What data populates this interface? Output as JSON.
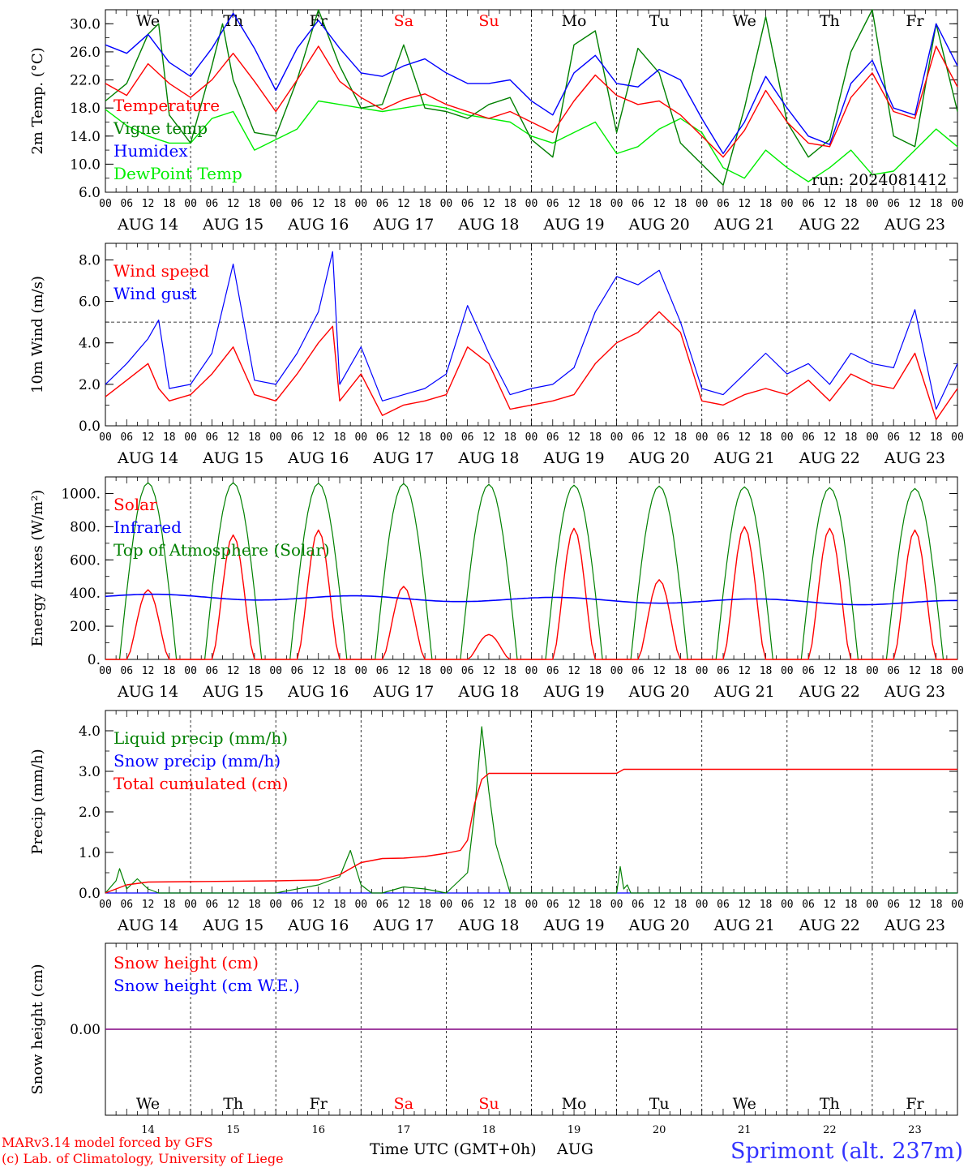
{
  "colors": {
    "red": "#ff0000",
    "green": "#008000",
    "blue": "#0000ff",
    "lightgreen": "#00ee00",
    "purple": "#800080",
    "axis": "#000000",
    "station": "#3333ff"
  },
  "chart_data": [
    {
      "type": "line",
      "ylabel": "2m Temp. (°C)",
      "ylim": [
        6.0,
        32.0
      ],
      "yticks": [
        6.0,
        10.0,
        14.0,
        18.0,
        22.0,
        26.0,
        30.0
      ],
      "ytick_labels": [
        "6.0",
        "10.0",
        "14.0",
        "18.0",
        "22.0",
        "26.0",
        "30.0"
      ],
      "annotation": "run: 2024081412",
      "show_day_names": true,
      "reference_line": null,
      "series": [
        {
          "name": "Temperature",
          "color": "red",
          "x": [
            0,
            6,
            12,
            18,
            24,
            30,
            36,
            42,
            48,
            54,
            60,
            66,
            72,
            78,
            84,
            90,
            96,
            102,
            108,
            114,
            120,
            126,
            132,
            138,
            144,
            150,
            156,
            162,
            168,
            174,
            180,
            186,
            192,
            198,
            204,
            210,
            216,
            222,
            228,
            234,
            240
          ],
          "values": [
            21.5,
            19.8,
            24.3,
            21.5,
            19.5,
            22.0,
            25.8,
            21.8,
            17.5,
            22.0,
            26.8,
            21.8,
            19.5,
            17.8,
            19.2,
            20.0,
            18.5,
            17.5,
            16.5,
            17.5,
            16.0,
            14.5,
            19.0,
            22.7,
            19.8,
            18.5,
            19.0,
            17.0,
            14.0,
            11.0,
            14.8,
            20.5,
            16.0,
            13.0,
            12.5,
            19.5,
            23.0,
            17.5,
            16.5,
            26.8,
            21.0
          ]
        },
        {
          "name": "Vigne temp",
          "color": "green",
          "x": [
            0,
            6,
            12,
            15,
            18,
            24,
            30,
            33,
            36,
            42,
            48,
            54,
            60,
            66,
            72,
            78,
            84,
            90,
            96,
            102,
            108,
            114,
            120,
            126,
            132,
            138,
            144,
            150,
            156,
            162,
            168,
            174,
            180,
            186,
            192,
            198,
            204,
            210,
            216,
            222,
            228,
            234,
            240
          ],
          "values": [
            19.0,
            21.5,
            28.5,
            30.0,
            17.0,
            13.0,
            24.0,
            30.0,
            22.0,
            14.5,
            14.0,
            22.0,
            32.0,
            24.0,
            18.0,
            18.5,
            27.0,
            18.0,
            17.5,
            16.5,
            18.5,
            19.5,
            13.5,
            11.0,
            27.0,
            29.0,
            14.5,
            26.5,
            23.0,
            13.0,
            10.0,
            7.0,
            18.0,
            31.0,
            16.0,
            11.0,
            13.5,
            26.0,
            32.0,
            14.0,
            12.5,
            30.0,
            17.5
          ]
        },
        {
          "name": "Humidex",
          "color": "blue",
          "x": [
            0,
            6,
            12,
            18,
            24,
            30,
            36,
            42,
            48,
            54,
            60,
            66,
            72,
            78,
            84,
            90,
            96,
            102,
            108,
            114,
            120,
            126,
            132,
            138,
            144,
            150,
            156,
            162,
            168,
            174,
            180,
            186,
            192,
            198,
            204,
            210,
            216,
            222,
            228,
            234,
            240
          ],
          "values": [
            27.0,
            25.8,
            28.5,
            24.5,
            22.5,
            26.5,
            31.5,
            26.5,
            20.5,
            26.5,
            30.5,
            26.5,
            23.0,
            22.5,
            24.0,
            25.0,
            23.0,
            21.5,
            21.5,
            22.0,
            19.0,
            17.0,
            23.0,
            25.5,
            21.5,
            21.0,
            23.5,
            22.0,
            16.5,
            11.5,
            16.0,
            22.5,
            18.0,
            14.0,
            12.8,
            21.5,
            24.8,
            18.0,
            17.0,
            30.0,
            24.0
          ]
        },
        {
          "name": "DewPoint Temp",
          "color": "lightgreen",
          "x": [
            0,
            6,
            12,
            18,
            24,
            30,
            36,
            42,
            48,
            54,
            60,
            66,
            72,
            78,
            84,
            90,
            96,
            102,
            108,
            114,
            120,
            126,
            132,
            138,
            144,
            150,
            156,
            162,
            168,
            174,
            180,
            186,
            192,
            198,
            204,
            210,
            216,
            222,
            228,
            234,
            240
          ],
          "values": [
            17.8,
            15.5,
            14.0,
            13.0,
            13.0,
            16.5,
            17.5,
            12.0,
            13.5,
            15.0,
            19.0,
            18.5,
            18.0,
            17.5,
            18.0,
            18.5,
            18.0,
            17.0,
            16.5,
            16.0,
            14.0,
            13.0,
            14.5,
            16.0,
            11.5,
            12.5,
            15.0,
            16.5,
            14.5,
            9.5,
            8.0,
            12.0,
            9.5,
            7.5,
            9.5,
            12.0,
            8.5,
            9.0,
            12.0,
            15.0,
            12.5
          ]
        }
      ]
    },
    {
      "type": "line",
      "ylabel": "10m Wind (m/s)",
      "ylim": [
        0.0,
        8.8
      ],
      "yticks": [
        0.0,
        2.0,
        4.0,
        6.0,
        8.0
      ],
      "ytick_labels": [
        "0.0",
        "2.0",
        "4.0",
        "6.0",
        "8.0"
      ],
      "reference_line": 5.0,
      "series": [
        {
          "name": "Wind speed",
          "color": "red",
          "x": [
            0,
            6,
            12,
            15,
            18,
            24,
            30,
            36,
            42,
            48,
            54,
            60,
            64,
            66,
            72,
            78,
            84,
            90,
            96,
            102,
            108,
            114,
            120,
            126,
            132,
            138,
            144,
            150,
            156,
            162,
            168,
            174,
            180,
            186,
            192,
            198,
            204,
            210,
            216,
            222,
            228,
            234,
            240
          ],
          "values": [
            1.4,
            2.2,
            3.0,
            1.8,
            1.2,
            1.5,
            2.5,
            3.8,
            1.5,
            1.2,
            2.5,
            4.0,
            4.8,
            1.2,
            2.5,
            0.5,
            1.0,
            1.2,
            1.5,
            3.8,
            3.0,
            0.8,
            1.0,
            1.2,
            1.5,
            3.0,
            4.0,
            4.5,
            5.5,
            4.5,
            1.2,
            1.0,
            1.5,
            1.8,
            1.5,
            2.2,
            1.2,
            2.5,
            2.0,
            1.8,
            3.5,
            0.3,
            1.8
          ]
        },
        {
          "name": "Wind gust",
          "color": "blue",
          "x": [
            0,
            6,
            12,
            15,
            18,
            24,
            30,
            36,
            42,
            48,
            54,
            60,
            64,
            66,
            72,
            78,
            84,
            90,
            96,
            102,
            108,
            114,
            120,
            126,
            132,
            138,
            144,
            150,
            156,
            162,
            168,
            174,
            180,
            186,
            192,
            198,
            204,
            210,
            216,
            222,
            228,
            234,
            240
          ],
          "values": [
            2.0,
            3.0,
            4.2,
            5.1,
            1.8,
            2.0,
            3.5,
            7.8,
            2.2,
            2.0,
            3.5,
            5.5,
            8.4,
            2.0,
            3.8,
            1.2,
            1.5,
            1.8,
            2.5,
            5.8,
            3.5,
            1.5,
            1.8,
            2.0,
            2.8,
            5.5,
            7.2,
            6.8,
            7.5,
            5.0,
            1.8,
            1.5,
            2.5,
            3.5,
            2.5,
            3.0,
            2.0,
            3.5,
            3.0,
            2.8,
            5.6,
            0.8,
            3.0
          ]
        }
      ]
    },
    {
      "type": "line",
      "ylabel": "Energy fluxes (W/m²)",
      "ylim": [
        0,
        1100
      ],
      "yticks": [
        0,
        200,
        400,
        600,
        800,
        1000
      ],
      "ytick_labels": [
        "0.",
        "200.",
        "400.",
        "600.",
        "800.",
        "1000."
      ],
      "reference_line": null,
      "toa_peaks": [
        1065,
        1065,
        1062,
        1060,
        1055,
        1050,
        1045,
        1040,
        1035,
        1030
      ],
      "solar_peaks": [
        420,
        750,
        780,
        440,
        150,
        790,
        480,
        800,
        790,
        780
      ],
      "infrared_start": 380,
      "infrared_end": 340,
      "series": [
        {
          "name": "Solar",
          "color": "red"
        },
        {
          "name": "Infrared",
          "color": "blue"
        },
        {
          "name": "Top of Atmosphere (Solar)",
          "color": "green"
        }
      ]
    },
    {
      "type": "line",
      "ylabel": "Precip (mm/h)",
      "ylim": [
        0.0,
        4.5
      ],
      "yticks": [
        0.0,
        1.0,
        2.0,
        3.0,
        4.0
      ],
      "ytick_labels": [
        "0.0",
        "1.0",
        "2.0",
        "3.0",
        "4.0"
      ],
      "reference_line": null,
      "series": [
        {
          "name": "Liquid precip (mm/h)",
          "color": "green",
          "x": [
            0,
            3,
            4,
            6,
            9,
            12,
            15,
            18,
            24,
            48,
            60,
            66,
            69,
            72,
            75,
            78,
            84,
            90,
            96,
            102,
            104,
            106,
            108,
            110,
            114,
            120,
            144,
            145,
            146,
            147,
            148,
            149,
            150,
            240
          ],
          "values": [
            0,
            0.3,
            0.6,
            0.1,
            0.35,
            0.1,
            0,
            0,
            0,
            0,
            0.2,
            0.4,
            1.05,
            0.2,
            0,
            0,
            0.15,
            0.1,
            0,
            0.5,
            2.0,
            4.1,
            2.5,
            1.2,
            0,
            0,
            0,
            0.65,
            0.1,
            0.2,
            0,
            0,
            0,
            0
          ]
        },
        {
          "name": "Snow precip (mm/h)",
          "color": "blue",
          "x": [
            0,
            240
          ],
          "values": [
            0,
            0
          ]
        },
        {
          "name": "Total cumulated (cm)",
          "color": "red",
          "x": [
            0,
            6,
            12,
            24,
            48,
            60,
            66,
            72,
            78,
            84,
            90,
            96,
            100,
            102,
            104,
            106,
            108,
            114,
            120,
            144,
            146,
            150,
            240
          ],
          "values": [
            0,
            0.2,
            0.27,
            0.28,
            0.3,
            0.32,
            0.45,
            0.75,
            0.85,
            0.86,
            0.9,
            0.98,
            1.05,
            1.3,
            2.2,
            2.8,
            2.95,
            2.95,
            2.95,
            2.95,
            3.05,
            3.05,
            3.05
          ]
        }
      ]
    },
    {
      "type": "line",
      "ylabel": "Snow height (cm)",
      "ylim": [
        -1,
        1
      ],
      "yticks": [
        0.0
      ],
      "ytick_labels": [
        "0.00"
      ],
      "show_bottom_days": true,
      "reference_line": null,
      "series": [
        {
          "name": "Snow height (cm)",
          "color": "red",
          "x": [
            0,
            240
          ],
          "values": [
            0,
            0
          ]
        },
        {
          "name": "Snow height (cm W.E.)",
          "color": "blue",
          "x": [
            0,
            240
          ],
          "values": [
            0,
            0
          ]
        }
      ]
    }
  ],
  "days": [
    {
      "name": "We",
      "date": "AUG 14",
      "num": "14",
      "color": "black"
    },
    {
      "name": "Th",
      "date": "AUG 15",
      "num": "15",
      "color": "black"
    },
    {
      "name": "Fr",
      "date": "AUG 16",
      "num": "16",
      "color": "black"
    },
    {
      "name": "Sa",
      "date": "AUG 17",
      "num": "17",
      "color": "red"
    },
    {
      "name": "Su",
      "date": "AUG 18",
      "num": "18",
      "color": "red"
    },
    {
      "name": "Mo",
      "date": "AUG 19",
      "num": "19",
      "color": "black"
    },
    {
      "name": "Tu",
      "date": "AUG 20",
      "num": "20",
      "color": "black"
    },
    {
      "name": "We",
      "date": "AUG 21",
      "num": "21",
      "color": "black"
    },
    {
      "name": "Th",
      "date": "AUG 22",
      "num": "22",
      "color": "black"
    },
    {
      "name": "Fr",
      "date": "AUG 23",
      "num": "23",
      "color": "black"
    }
  ],
  "hour_labels": [
    "00",
    "06",
    "12",
    "18"
  ],
  "footer": {
    "credit1": "MARv3.14 model forced by GFS",
    "credit2": "(c) Lab. of Climatology, University of Liege",
    "xlabel": "Time UTC (GMT+0h)",
    "month": "AUG",
    "station": "Sprimont (alt. 237m)"
  }
}
